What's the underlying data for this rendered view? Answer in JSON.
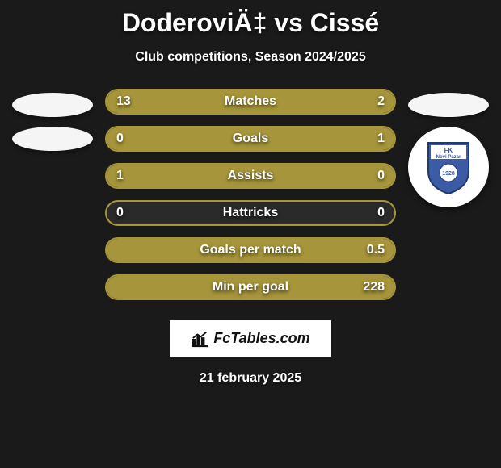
{
  "title": "DoderoviÄ‡ vs Cissé",
  "subtitle": "Club competitions, Season 2024/2025",
  "date": "21 february 2025",
  "watermark_text": "FcTables.com",
  "bar_styling": {
    "height": 32,
    "border_radius": 16,
    "border_color": "#a6953a",
    "empty_bg": "#2a2a2a",
    "fill_color_left": "#a6953a",
    "fill_color_right": "#a6953a",
    "label_fontsize": 16,
    "label_fontweight": 800,
    "value_fontsize": 16
  },
  "badge_right": {
    "top_text": "FK",
    "mid_text": "Novi Pazar",
    "year": "1928",
    "shield_top": "#3b5ba5",
    "shield_bottom": "#ffffff"
  },
  "stats": [
    {
      "label": "Matches",
      "leftVal": "13",
      "rightVal": "2",
      "leftPct": 86.7,
      "rightPct": 13.3
    },
    {
      "label": "Goals",
      "leftVal": "0",
      "rightVal": "1",
      "leftPct": 0,
      "rightPct": 100
    },
    {
      "label": "Assists",
      "leftVal": "1",
      "rightVal": "0",
      "leftPct": 100,
      "rightPct": 0
    },
    {
      "label": "Hattricks",
      "leftVal": "0",
      "rightVal": "0",
      "leftPct": 0,
      "rightPct": 0
    },
    {
      "label": "Goals per match",
      "leftVal": "",
      "rightVal": "0.5",
      "leftPct": 0,
      "rightPct": 100
    },
    {
      "label": "Min per goal",
      "leftVal": "",
      "rightVal": "228",
      "leftPct": 0,
      "rightPct": 100
    }
  ]
}
